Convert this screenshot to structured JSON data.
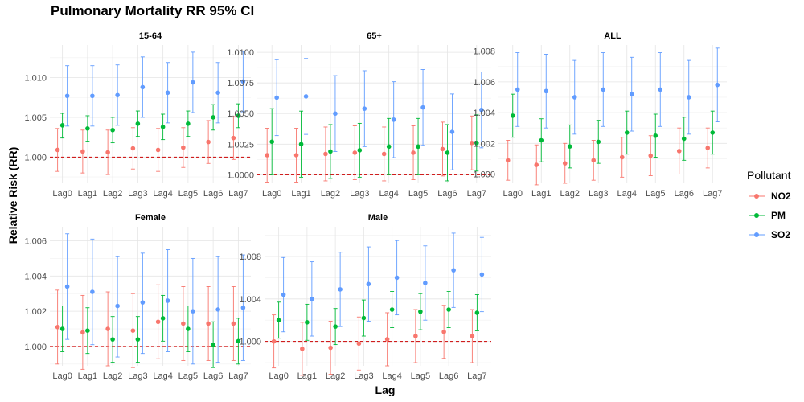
{
  "title": "Pulmonary Mortality RR 95% CI",
  "xlabel": "Lag",
  "ylabel": "Relative Risk (RR)",
  "legend": {
    "title": "Pollutant",
    "items": [
      {
        "name": "NO2",
        "color": "#f8766d"
      },
      {
        "name": "PM",
        "color": "#00ba38"
      },
      {
        "name": "SO2",
        "color": "#619cff"
      }
    ]
  },
  "chart_data": {
    "type": "scatter",
    "errorbars": true,
    "reference_line": {
      "y": 1.0,
      "color": "#cc0000",
      "style": "dashed"
    },
    "grid": true,
    "categories": [
      "Lag0",
      "Lag1",
      "Lag2",
      "Lag3",
      "Lag4",
      "Lag5",
      "Lag6",
      "Lag7"
    ],
    "panels": [
      {
        "name": "15-64",
        "yticks": [
          1.0,
          1.005,
          1.01
        ],
        "ytick_labels": [
          "1.000",
          "1.005",
          "1.010"
        ],
        "ylim": [
          0.9967,
          1.0141
        ],
        "series": [
          {
            "name": "NO2",
            "values": [
              1.0009,
              1.0007,
              1.0006,
              1.0011,
              1.0009,
              1.0012,
              1.0019,
              1.0024
            ],
            "lower": [
              0.9982,
              0.998,
              0.9978,
              0.9985,
              0.9982,
              0.9987,
              0.9992,
              0.9997
            ],
            "upper": [
              1.0036,
              1.0034,
              1.0034,
              1.0037,
              1.0036,
              1.0037,
              1.0046,
              1.0051
            ]
          },
          {
            "name": "PM",
            "values": [
              1.004,
              1.0036,
              1.0034,
              1.0042,
              1.0038,
              1.0042,
              1.005,
              1.0052
            ],
            "lower": [
              1.0024,
              1.002,
              1.0018,
              1.0026,
              1.0022,
              1.0026,
              1.0034,
              1.0037
            ],
            "upper": [
              1.0055,
              1.0052,
              1.005,
              1.0058,
              1.0054,
              1.0058,
              1.0066,
              1.0067
            ]
          },
          {
            "name": "SO2",
            "values": [
              1.0077,
              1.0077,
              1.0078,
              1.0088,
              1.0081,
              1.0094,
              1.0081,
              1.0095
            ],
            "lower": [
              1.0039,
              1.0039,
              1.004,
              1.005,
              1.0043,
              1.0056,
              1.0043,
              1.0057
            ],
            "upper": [
              1.0115,
              1.0115,
              1.0116,
              1.0126,
              1.0119,
              1.0132,
              1.0119,
              1.0133
            ]
          }
        ]
      },
      {
        "name": "65+",
        "yticks": [
          1.0,
          1.0025,
          1.005,
          1.0075,
          1.01
        ],
        "ytick_labels": [
          "1.0000",
          "1.0025",
          "1.0050",
          "1.0075",
          "1.0100"
        ],
        "ylim": [
          0.9993,
          1.0106
        ],
        "series": [
          {
            "name": "NO2",
            "values": [
              1.0016,
              1.0016,
              1.0017,
              1.0018,
              1.0017,
              1.0018,
              1.0021,
              1.0026
            ],
            "lower": [
              0.9994,
              0.9994,
              0.9995,
              0.9996,
              0.9995,
              0.9996,
              0.9999,
              1.0004
            ],
            "upper": [
              1.0038,
              1.0038,
              1.0039,
              1.004,
              1.0039,
              1.004,
              1.0043,
              1.0048
            ]
          },
          {
            "name": "PM",
            "values": [
              1.0027,
              1.0025,
              1.0019,
              1.002,
              1.0023,
              1.0023,
              1.0018,
              1.0026
            ],
            "lower": [
              1.0,
              0.9998,
              0.9997,
              0.9998,
              1.0,
              1.0,
              0.9995,
              1.0003
            ],
            "upper": [
              1.0054,
              1.0052,
              1.0041,
              1.0042,
              1.0046,
              1.0046,
              1.0041,
              1.0049
            ]
          },
          {
            "name": "SO2",
            "values": [
              1.0063,
              1.0064,
              1.005,
              1.0054,
              1.0045,
              1.0055,
              1.0035,
              1.0053
            ],
            "lower": [
              1.0032,
              1.0033,
              1.0019,
              1.0023,
              1.0014,
              1.0024,
              1.0004,
              1.0022
            ],
            "upper": [
              1.0094,
              1.0095,
              1.0081,
              1.0085,
              1.0076,
              1.0086,
              1.0066,
              1.0084
            ]
          }
        ]
      },
      {
        "name": "ALL",
        "yticks": [
          1.0,
          1.002,
          1.004,
          1.006,
          1.008
        ],
        "ytick_labels": [
          "1.000",
          "1.002",
          "1.004",
          "1.006",
          "1.008"
        ],
        "ylim": [
          0.9994,
          1.0084
        ],
        "series": [
          {
            "name": "NO2",
            "values": [
              1.0009,
              1.0006,
              1.0007,
              1.0009,
              1.0011,
              1.0012,
              1.0015,
              1.0017
            ],
            "lower": [
              0.9996,
              0.9993,
              0.9994,
              0.9996,
              0.9998,
              0.9999,
              1.0,
              1.0004
            ],
            "upper": [
              1.0022,
              1.0019,
              1.002,
              1.0022,
              1.0024,
              1.0025,
              1.003,
              1.003
            ]
          },
          {
            "name": "PM",
            "values": [
              1.0038,
              1.0022,
              1.0018,
              1.0021,
              1.0027,
              1.0025,
              1.0023,
              1.0027
            ],
            "lower": [
              1.0024,
              1.0008,
              1.0004,
              1.0007,
              1.0013,
              1.0011,
              1.0009,
              1.0013
            ],
            "upper": [
              1.0052,
              1.0036,
              1.0032,
              1.0035,
              1.0041,
              1.0039,
              1.0037,
              1.0041
            ]
          },
          {
            "name": "SO2",
            "values": [
              1.0055,
              1.0054,
              1.005,
              1.0055,
              1.0052,
              1.0055,
              1.005,
              1.0058
            ],
            "lower": [
              1.0031,
              1.003,
              1.0026,
              1.0031,
              1.0028,
              1.0031,
              1.0026,
              1.0034
            ],
            "upper": [
              1.0079,
              1.0078,
              1.0074,
              1.0079,
              1.0076,
              1.0079,
              1.0074,
              1.0082
            ]
          }
        ]
      },
      {
        "name": "Female",
        "yticks": [
          1.0,
          1.002,
          1.004,
          1.006
        ],
        "ytick_labels": [
          "1.000",
          "1.002",
          "1.004",
          "1.006"
        ],
        "ylim": [
          0.9989,
          1.0068
        ],
        "series": [
          {
            "name": "NO2",
            "values": [
              1.0011,
              1.0008,
              1.001,
              1.0009,
              1.0014,
              1.0013,
              1.0013,
              1.0013
            ],
            "lower": [
              0.999,
              0.9987,
              0.9989,
              0.9988,
              0.9993,
              0.9992,
              0.9992,
              0.9992
            ],
            "upper": [
              1.0032,
              1.0029,
              1.0031,
              1.003,
              1.0035,
              1.0034,
              1.0034,
              1.0034
            ]
          },
          {
            "name": "PM",
            "values": [
              1.001,
              1.0009,
              1.0004,
              1.0004,
              1.0016,
              1.001,
              1.0001,
              1.0003
            ],
            "lower": [
              0.9997,
              0.9996,
              0.9991,
              0.9991,
              1.0003,
              0.9997,
              0.9988,
              0.999
            ],
            "upper": [
              1.0023,
              1.0022,
              1.0017,
              1.0017,
              1.0029,
              1.0023,
              1.0014,
              1.0016
            ]
          },
          {
            "name": "SO2",
            "values": [
              1.0034,
              1.0031,
              1.0023,
              1.0025,
              1.0026,
              1.002,
              1.0021,
              1.0022
            ],
            "lower": [
              1.0004,
              1.0001,
              0.9994,
              0.9996,
              0.9997,
              0.999,
              0.9991,
              0.9992
            ],
            "upper": [
              1.0064,
              1.0061,
              1.0051,
              1.0053,
              1.0055,
              1.005,
              1.0051,
              1.0052
            ]
          }
        ]
      },
      {
        "name": "Male",
        "yticks": [
          1.0,
          1.004,
          1.008
        ],
        "ytick_labels": [
          "1.000",
          "1.004",
          "1.008"
        ],
        "ylim": [
          0.9977,
          1.0108
        ],
        "series": [
          {
            "name": "NO2",
            "values": [
              1.0,
              0.9993,
              0.9994,
              0.9998,
              1.0002,
              1.0005,
              1.0009,
              1.0005
            ],
            "lower": [
              0.9975,
              0.9968,
              0.9969,
              0.9973,
              0.9977,
              0.998,
              0.9984,
              0.998
            ],
            "upper": [
              1.0025,
              1.0018,
              1.0019,
              1.0023,
              1.0027,
              1.003,
              1.0034,
              1.003
            ]
          },
          {
            "name": "PM",
            "values": [
              1.002,
              1.0018,
              1.0014,
              1.0022,
              1.003,
              1.0028,
              1.003,
              1.0027
            ],
            "lower": [
              1.0003,
              1.0001,
              0.9997,
              1.0005,
              1.0013,
              1.0011,
              1.0013,
              1.001
            ],
            "upper": [
              1.0037,
              1.0035,
              1.0031,
              1.0039,
              1.0047,
              1.0045,
              1.0047,
              1.0044
            ]
          },
          {
            "name": "SO2",
            "values": [
              1.0044,
              1.004,
              1.0049,
              1.0054,
              1.006,
              1.0055,
              1.0067,
              1.0063
            ],
            "lower": [
              1.0009,
              1.0005,
              1.0014,
              1.0019,
              1.0025,
              1.002,
              1.0032,
              1.0028
            ],
            "upper": [
              1.0079,
              1.0075,
              1.0084,
              1.0089,
              1.0095,
              1.009,
              1.0102,
              1.0098
            ]
          }
        ]
      }
    ]
  }
}
